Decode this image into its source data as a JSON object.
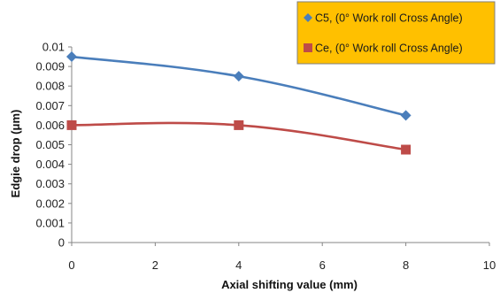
{
  "chart_data": {
    "type": "line",
    "xlabel": "Axial shifting value (mm)",
    "ylabel": "Edgie drop (μm)",
    "xlim": [
      0,
      10
    ],
    "ylim": [
      0,
      0.01
    ],
    "x_ticks": [
      "0",
      "2",
      "4",
      "6",
      "8",
      "10"
    ],
    "y_ticks": [
      "0",
      "0.001",
      "0.002",
      "0.003",
      "0.004",
      "0.005",
      "0.006",
      "0.007",
      "0.008",
      "0.009",
      "0.01"
    ],
    "grid": false,
    "smoothed": true,
    "legend_position": "top-right",
    "series": [
      {
        "name": "C5, (0° Work roll Cross Angle)",
        "marker": "diamond",
        "color": "#4a7ebb",
        "x": [
          0,
          4,
          8
        ],
        "y": [
          0.0095,
          0.0085,
          0.0065
        ]
      },
      {
        "name": "Ce, (0° Work roll Cross Angle)",
        "marker": "square",
        "color": "#be4b48",
        "x": [
          0,
          4,
          8
        ],
        "y": [
          0.006,
          0.006,
          0.00475
        ]
      }
    ],
    "legend_background": "#ffc000",
    "axis_color": "#868686"
  }
}
